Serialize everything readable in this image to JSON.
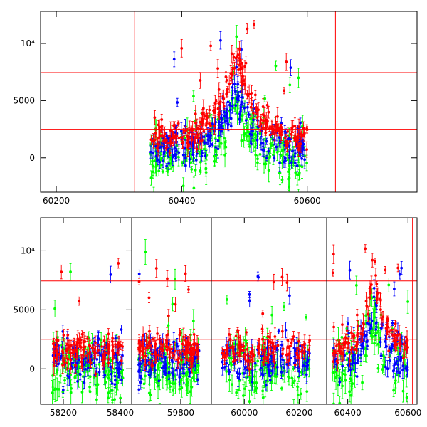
{
  "chart_data": [
    {
      "type": "scatter",
      "xlim": [
        60175,
        60775
      ],
      "ylim": [
        -3000,
        12800
      ],
      "x_tick_labels": [
        "60200",
        "60400",
        "60600"
      ],
      "y_tick_labels": [
        "0",
        "5000",
        "10⁴"
      ],
      "grid": false,
      "colors": {
        "red": "#ff0000",
        "blue": "#0000ff",
        "green": "#00ff00",
        "refline": "#ff0000"
      },
      "reference_lines": {
        "x": [
          60325,
          60645
        ],
        "y": [
          2500,
          7450
        ]
      },
      "segments": [
        [
          60350,
          60600
        ]
      ],
      "series_color_order": [
        "green",
        "blue",
        "red"
      ],
      "peak": {
        "x": 60487,
        "red_y": 9500,
        "blue_y": 6000,
        "green_y": 4600
      }
    },
    {
      "type": "scatter",
      "broken_x_axis": true,
      "ylim": [
        -3000,
        12800
      ],
      "panels": [
        {
          "xlim": [
            58120,
            58440
          ],
          "x_tick_labels": [
            "58200",
            "58400"
          ],
          "segments": [
            [
              58160,
              58410
            ]
          ]
        },
        {
          "xlim": [
            59640,
            59900
          ],
          "x_tick_labels": [
            "59800"
          ],
          "segments": [
            [
              59660,
              59860
            ]
          ]
        },
        {
          "xlim": [
            59880,
            60300
          ],
          "x_tick_labels": [
            "60000",
            "60200"
          ],
          "segments": [
            [
              59920,
              60240
            ]
          ]
        },
        {
          "xlim": [
            60330,
            60630
          ],
          "x_tick_labels": [
            "60400",
            "60600"
          ],
          "segments": [
            [
              60350,
              60600
            ]
          ],
          "reference_lines_x": [
            60325,
            60615
          ]
        }
      ],
      "y_tick_labels": [
        "0",
        "5000",
        "10⁴"
      ],
      "grid": false,
      "reference_lines": {
        "y": [
          2500,
          7450
        ]
      },
      "peak": {
        "x": 60487,
        "red_y": 9500,
        "blue_y": 6000,
        "green_y": 4600
      }
    }
  ]
}
